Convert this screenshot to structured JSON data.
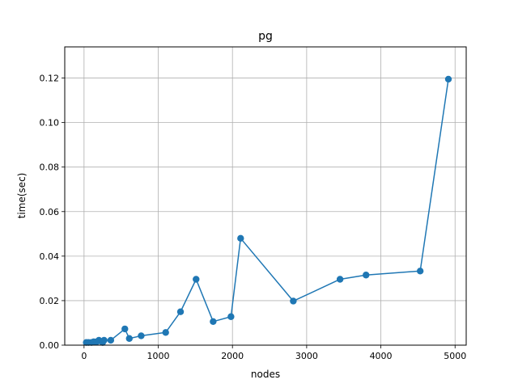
{
  "chart_data": {
    "type": "line",
    "title": "pg",
    "xlabel": "nodes",
    "ylabel": "time(sec)",
    "xlim": [
      -260,
      5150
    ],
    "ylim": [
      0,
      0.134
    ],
    "xticks": [
      0,
      1000,
      2000,
      3000,
      4000,
      5000
    ],
    "xtick_labels": [
      "0",
      "1000",
      "2000",
      "3000",
      "4000",
      "5000"
    ],
    "yticks": [
      0,
      0.02,
      0.04,
      0.06,
      0.08,
      0.1,
      0.12
    ],
    "ytick_labels": [
      "0.00",
      "0.02",
      "0.04",
      "0.06",
      "0.08",
      "0.10",
      "0.12"
    ],
    "grid": true,
    "line_color": "#1f77b4",
    "series": [
      {
        "x": [
          30,
          60,
          100,
          130,
          170,
          200,
          250,
          270,
          360,
          550,
          610,
          770,
          1100,
          1300,
          1510,
          1740,
          1980,
          2110,
          2820,
          3450,
          3800,
          4530,
          4910
        ],
        "y": [
          0.0012,
          0.0012,
          0.0012,
          0.0015,
          0.0015,
          0.0022,
          0.0012,
          0.0022,
          0.0022,
          0.0073,
          0.003,
          0.0042,
          0.0057,
          0.015,
          0.0296,
          0.0106,
          0.0128,
          0.048,
          0.0198,
          0.0296,
          0.0315,
          0.0333,
          0.1195
        ]
      }
    ]
  }
}
